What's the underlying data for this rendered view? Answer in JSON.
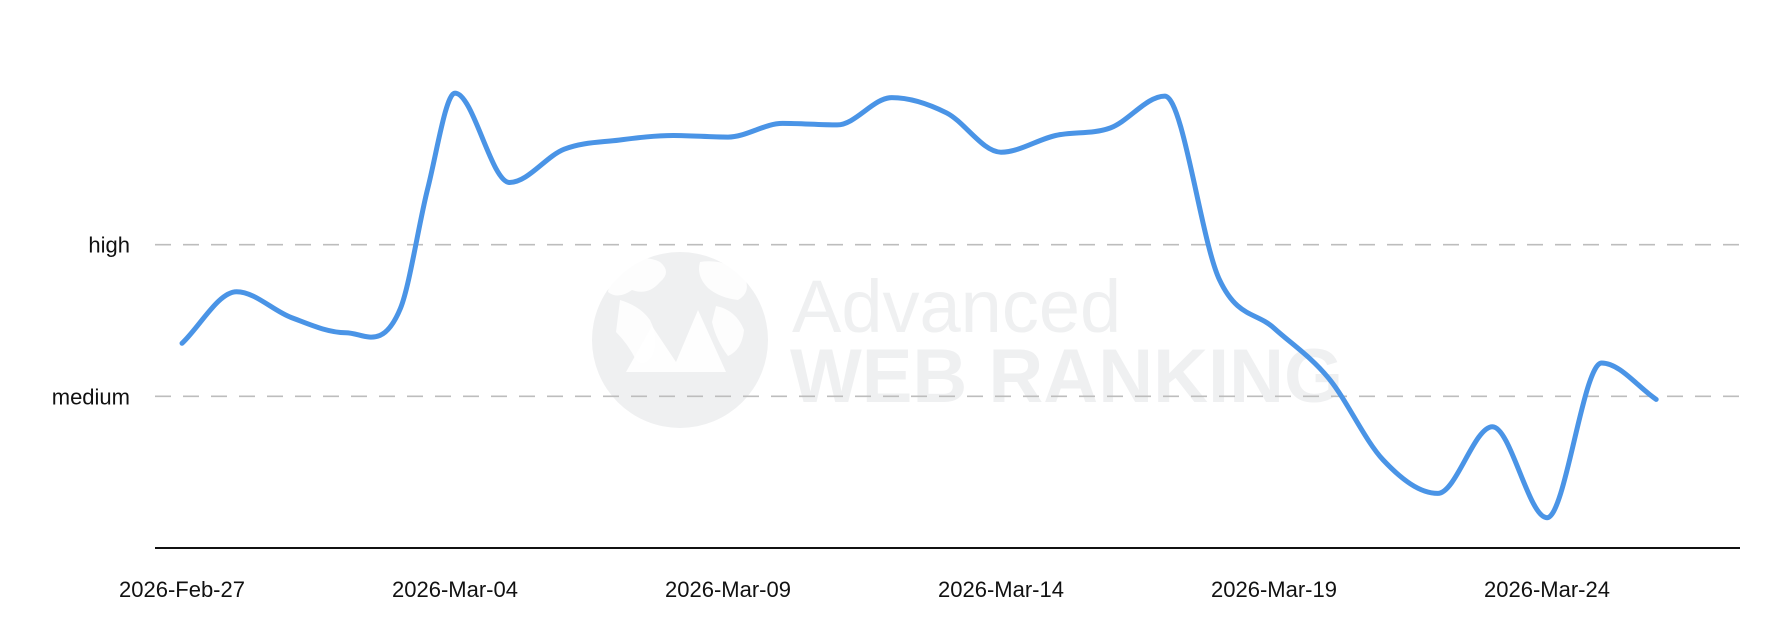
{
  "watermark": {
    "line1": "Advanced",
    "line2": "WEB RANKING",
    "color": "#eff0f1"
  },
  "colors": {
    "series": "#4a94e6",
    "grid": "#bdbdbd",
    "axis": "#111111"
  },
  "chart_data": {
    "type": "line",
    "title": "",
    "xlabel": "",
    "ylabel": "",
    "y_categories": [
      "medium",
      "high"
    ],
    "y_category_values": [
      1,
      2
    ],
    "ylim": [
      0,
      3.35
    ],
    "grid": "horizontal dashed at category levels",
    "legend": "none",
    "x_ticks": [
      "2026-Feb-27",
      "2026-Mar-04",
      "2026-Mar-09",
      "2026-Mar-14",
      "2026-Mar-19",
      "2026-Mar-24"
    ],
    "series": [
      {
        "color": "#4a94e6",
        "points": [
          {
            "x": "2026-Feb-27",
            "y": 1.35
          },
          {
            "x": "2026-Feb-28",
            "y": 1.69
          },
          {
            "x": "2026-Mar-01",
            "y": 1.52
          },
          {
            "x": "2026-Mar-02",
            "y": 1.42
          },
          {
            "x": "2026-Mar-03",
            "y": 1.58
          },
          {
            "x": "2026-Mar-03 12:00",
            "y": 2.37
          },
          {
            "x": "2026-Mar-04",
            "y": 3.0
          },
          {
            "x": "2026-Mar-05",
            "y": 2.41
          },
          {
            "x": "2026-Mar-06",
            "y": 2.63
          },
          {
            "x": "2026-Mar-07",
            "y": 2.69
          },
          {
            "x": "2026-Mar-08",
            "y": 2.72
          },
          {
            "x": "2026-Mar-09",
            "y": 2.71
          },
          {
            "x": "2026-Mar-10",
            "y": 2.8
          },
          {
            "x": "2026-Mar-11",
            "y": 2.79
          },
          {
            "x": "2026-Mar-12",
            "y": 2.97
          },
          {
            "x": "2026-Mar-13",
            "y": 2.87
          },
          {
            "x": "2026-Mar-14",
            "y": 2.61
          },
          {
            "x": "2026-Mar-15",
            "y": 2.72
          },
          {
            "x": "2026-Mar-16",
            "y": 2.77
          },
          {
            "x": "2026-Mar-17",
            "y": 2.98
          },
          {
            "x": "2026-Mar-18",
            "y": 1.77
          },
          {
            "x": "2026-Mar-19",
            "y": 1.45
          },
          {
            "x": "2026-Mar-20",
            "y": 1.12
          },
          {
            "x": "2026-Mar-21",
            "y": 0.58
          },
          {
            "x": "2026-Mar-22",
            "y": 0.36
          },
          {
            "x": "2026-Mar-23",
            "y": 0.8
          },
          {
            "x": "2026-Mar-24",
            "y": 0.2
          },
          {
            "x": "2026-Mar-25",
            "y": 1.22
          },
          {
            "x": "2026-Mar-26",
            "y": 0.98
          }
        ]
      }
    ]
  }
}
